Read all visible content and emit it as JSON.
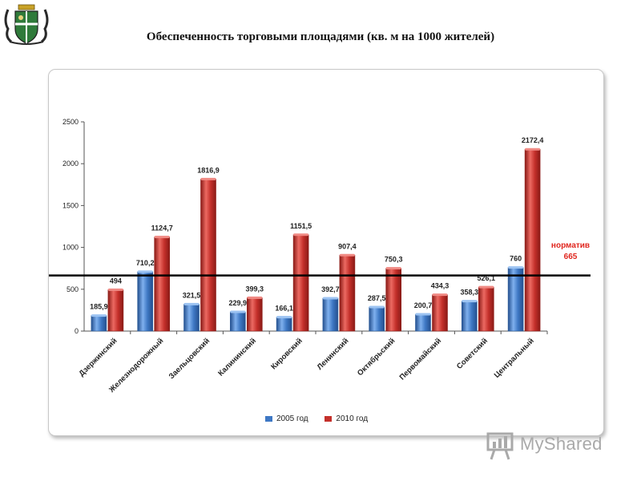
{
  "page": {
    "title": "Обеспеченность торговыми площадями (кв. м на 1000 жителей)"
  },
  "watermark": {
    "text": "MyShared"
  },
  "colors": {
    "series_2005": "#3e78c4",
    "series_2010": "#c4302b",
    "norm_label": "#e0261e",
    "norm_line": "#000000"
  },
  "chart_data": {
    "type": "bar",
    "title": "",
    "xlabel": "",
    "ylabel": "",
    "ylim": [
      0,
      2500
    ],
    "yticks": [
      0,
      500,
      1000,
      1500,
      2000,
      2500
    ],
    "ytick_labels": [
      "0",
      "500",
      "1000",
      "1500",
      "2000",
      "2500"
    ],
    "grid": false,
    "legend_position": "bottom",
    "categories": [
      "Дзержинский",
      "Железнодорожный",
      "Заельцовский",
      "Калининский",
      "Кировский",
      "Ленинский",
      "Октябрьский",
      "Первомайский",
      "Советский",
      "Центральный"
    ],
    "series": [
      {
        "name": "2005 год",
        "values": [
          185.9,
          710.2,
          321.5,
          229.9,
          166.1,
          392.7,
          287.5,
          200.7,
          358.3,
          760
        ],
        "labels": [
          "185,9",
          "710,2",
          "321,5",
          "229,9",
          "166,1",
          "392,7",
          "287,5",
          "200,7",
          "358,3",
          "760"
        ]
      },
      {
        "name": "2010 год",
        "values": [
          494,
          1124.7,
          1816.9,
          399.3,
          1151.5,
          907.4,
          750.3,
          434.3,
          526.1,
          2172.4
        ],
        "labels": [
          "494",
          "1124,7",
          "1816,9",
          "399,3",
          "1151,5",
          "907,4",
          "750,3",
          "434,3",
          "526,1",
          "2172,4"
        ]
      }
    ],
    "reference_line": {
      "value": 665,
      "label_line1": "норматив",
      "label_line2": "665"
    }
  }
}
